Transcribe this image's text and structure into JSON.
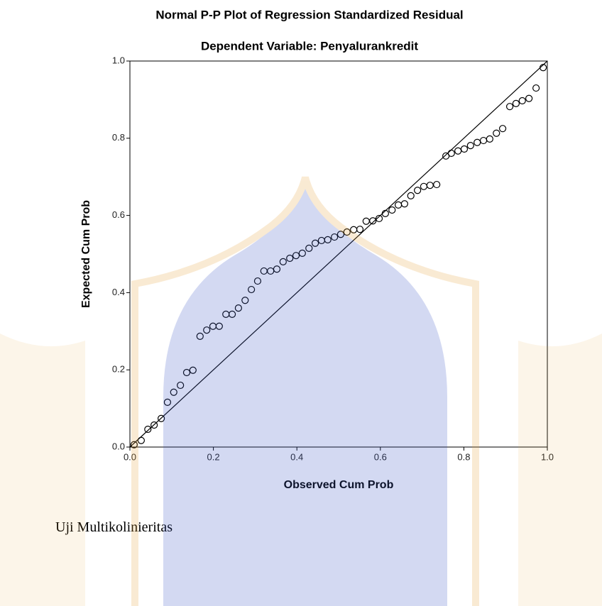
{
  "chart_data": {
    "type": "scatter",
    "title": "Normal P-P Plot of Regression Standardized Residual",
    "subtitle": "Dependent Variable: Penyalurankredit",
    "xlabel": "Observed Cum Prob",
    "ylabel": "Expected Cum Prob",
    "x": [
      0.01,
      0.027,
      0.043,
      0.058,
      0.075,
      0.09,
      0.105,
      0.121,
      0.136,
      0.151,
      0.168,
      0.184,
      0.199,
      0.214,
      0.23,
      0.245,
      0.26,
      0.276,
      0.291,
      0.306,
      0.321,
      0.337,
      0.352,
      0.367,
      0.383,
      0.398,
      0.413,
      0.429,
      0.444,
      0.459,
      0.474,
      0.49,
      0.505,
      0.52,
      0.536,
      0.551,
      0.566,
      0.582,
      0.597,
      0.612,
      0.628,
      0.643,
      0.658,
      0.673,
      0.689,
      0.704,
      0.719,
      0.735,
      0.757,
      0.77,
      0.786,
      0.801,
      0.816,
      0.832,
      0.847,
      0.862,
      0.878,
      0.893,
      0.91,
      0.925,
      0.94,
      0.956,
      0.973,
      0.99
    ],
    "values": [
      0.006,
      0.017,
      0.046,
      0.057,
      0.074,
      0.116,
      0.142,
      0.16,
      0.193,
      0.199,
      0.287,
      0.303,
      0.313,
      0.313,
      0.344,
      0.344,
      0.36,
      0.38,
      0.408,
      0.43,
      0.456,
      0.456,
      0.461,
      0.48,
      0.489,
      0.496,
      0.502,
      0.515,
      0.528,
      0.535,
      0.537,
      0.544,
      0.551,
      0.557,
      0.563,
      0.564,
      0.585,
      0.586,
      0.592,
      0.605,
      0.614,
      0.627,
      0.63,
      0.651,
      0.665,
      0.675,
      0.678,
      0.68,
      0.754,
      0.761,
      0.767,
      0.772,
      0.781,
      0.789,
      0.794,
      0.798,
      0.813,
      0.825,
      0.882,
      0.89,
      0.897,
      0.903,
      0.93,
      0.983
    ],
    "color": "#000000",
    "diagonal": true,
    "grid": false,
    "xlim": [
      0,
      1
    ],
    "ylim": [
      0,
      1
    ],
    "xticks": [
      {
        "value": 0,
        "label": "0.0"
      },
      0.2,
      0.4,
      0.6,
      0.8,
      {
        "value": 1,
        "label": "1.0"
      }
    ],
    "yticks": [
      {
        "value": 0,
        "label": "0.0"
      },
      0.2,
      0.4,
      0.6,
      0.8,
      {
        "value": 1,
        "label": "1.0"
      }
    ]
  },
  "document": {
    "heading": "Uji Multikolinieritas"
  }
}
